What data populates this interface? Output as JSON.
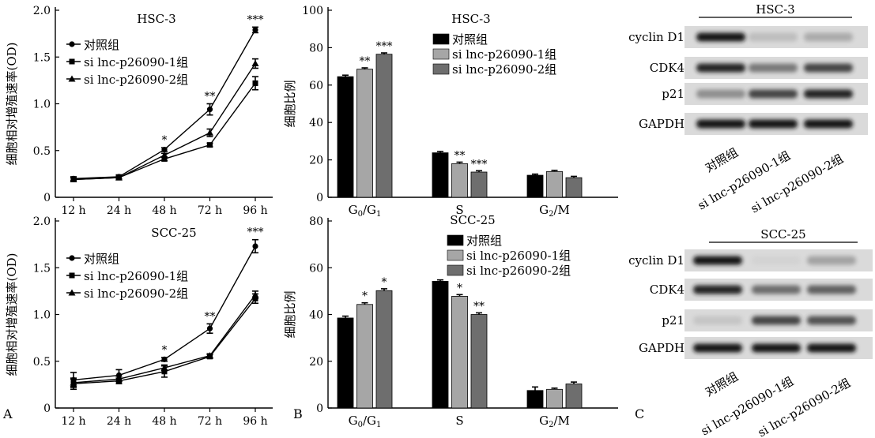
{
  "figure": {
    "panel_labels": [
      "A",
      "B",
      "C"
    ],
    "cell_lines": [
      "HSC-3",
      "SCC-25"
    ]
  },
  "colors": {
    "control": "#000000",
    "si1": "#a6a6a6",
    "si2": "#6e6e6e",
    "line": "#000000"
  },
  "chart_data": [
    {
      "id": "A-HSC3",
      "type": "line",
      "title": "HSC-3",
      "ylabel": "细胞相对增殖速率(OD)",
      "xlabel": "",
      "categories": [
        "12 h",
        "24 h",
        "48 h",
        "72 h",
        "96 h"
      ],
      "ylim": [
        0,
        2.0
      ],
      "yticks": [
        "0",
        "0.5",
        "1.0",
        "1.5",
        "2.0"
      ],
      "legend_position": "top-left",
      "series": [
        {
          "name": "对照组",
          "marker": "circle",
          "values": [
            0.2,
            0.22,
            0.51,
            0.94,
            1.79
          ],
          "errors": [
            0.02,
            0.02,
            0.02,
            0.06,
            0.03
          ]
        },
        {
          "name": "si lnc-p26090-1组",
          "marker": "square",
          "values": [
            0.19,
            0.21,
            0.41,
            0.56,
            1.22
          ],
          "errors": [
            0.02,
            0.02,
            0.02,
            0.02,
            0.07
          ]
        },
        {
          "name": "si lnc-p26090-2组",
          "marker": "triangle",
          "values": [
            0.19,
            0.21,
            0.45,
            0.69,
            1.43
          ],
          "errors": [
            0.02,
            0.02,
            0.02,
            0.04,
            0.05
          ]
        }
      ],
      "annotations": [
        "",
        "",
        "*",
        "**",
        "***"
      ]
    },
    {
      "id": "A-SCC25",
      "type": "line",
      "title": "SCC-25",
      "ylabel": "细胞相对增殖速率(OD)",
      "xlabel": "",
      "categories": [
        "12 h",
        "24 h",
        "48 h",
        "72 h",
        "96 h"
      ],
      "ylim": [
        0,
        2.0
      ],
      "yticks": [
        "0",
        "0.5",
        "1.0",
        "1.5",
        "2.0"
      ],
      "legend_position": "top-left",
      "series": [
        {
          "name": "对照组",
          "marker": "circle",
          "values": [
            0.3,
            0.35,
            0.52,
            0.85,
            1.73
          ],
          "errors": [
            0.08,
            0.06,
            0.02,
            0.05,
            0.07
          ]
        },
        {
          "name": "si lnc-p26090-1组",
          "marker": "square",
          "values": [
            0.26,
            0.29,
            0.39,
            0.55,
            1.17
          ],
          "errors": [
            0.06,
            0.03,
            0.06,
            0.02,
            0.05
          ]
        },
        {
          "name": "si lnc-p26090-2组",
          "marker": "triangle",
          "values": [
            0.27,
            0.31,
            0.43,
            0.56,
            1.21
          ],
          "errors": [
            0.04,
            0.03,
            0.03,
            0.02,
            0.04
          ]
        }
      ],
      "annotations": [
        "",
        "",
        "*",
        "**",
        "***"
      ]
    },
    {
      "id": "B-HSC3",
      "type": "bar",
      "title": "HSC-3",
      "ylabel": "细胞比例",
      "xlabel": "",
      "categories": [
        "G0/G1",
        "S",
        "G2/M"
      ],
      "category_labels": [
        {
          "main": "G",
          "sub1": "0",
          "sep": "/G",
          "sub2": "1"
        },
        {
          "main": "S",
          "sub1": "",
          "sep": "",
          "sub2": ""
        },
        {
          "main": "G",
          "sub1": "2",
          "sep": "/M",
          "sub2": ""
        }
      ],
      "ylim": [
        0,
        100
      ],
      "yticks": [
        "0",
        "20",
        "40",
        "60",
        "80",
        "100"
      ],
      "legend_position": "top-right",
      "series": [
        {
          "name": "对照组",
          "values": [
            64.5,
            23.8,
            11.8
          ],
          "errors": [
            0.8,
            0.7,
            0.6
          ]
        },
        {
          "name": "si lnc-p26090-1组",
          "values": [
            68.5,
            18.0,
            13.8
          ],
          "errors": [
            0.7,
            0.8,
            0.6
          ]
        },
        {
          "name": "si lnc-p26090-2组",
          "values": [
            76.5,
            13.5,
            10.5
          ],
          "errors": [
            0.7,
            0.7,
            0.7
          ]
        }
      ],
      "annotations": [
        [
          "",
          "**",
          "***"
        ],
        [
          "",
          "**",
          "***"
        ],
        [
          "",
          "",
          ""
        ]
      ]
    },
    {
      "id": "B-SCC25",
      "type": "bar",
      "title": "SCC-25",
      "ylabel": "细胞比例",
      "xlabel": "",
      "categories": [
        "G0/G1",
        "S",
        "G2/M"
      ],
      "category_labels": [
        {
          "main": "G",
          "sub1": "0",
          "sep": "/G",
          "sub2": "1"
        },
        {
          "main": "S",
          "sub1": "",
          "sep": "",
          "sub2": ""
        },
        {
          "main": "G",
          "sub1": "2",
          "sep": "/M",
          "sub2": ""
        }
      ],
      "ylim": [
        0,
        80
      ],
      "yticks": [
        "0",
        "20",
        "40",
        "60",
        "80"
      ],
      "legend_position": "top-right",
      "series": [
        {
          "name": "对照组",
          "values": [
            38.5,
            54.2,
            7.5
          ],
          "errors": [
            0.8,
            0.6,
            1.5
          ]
        },
        {
          "name": "si lnc-p26090-1组",
          "values": [
            44.3,
            47.8,
            8.0
          ],
          "errors": [
            0.7,
            0.7,
            0.5
          ]
        },
        {
          "name": "si lnc-p26090-2组",
          "values": [
            50.2,
            40.0,
            10.3
          ],
          "errors": [
            0.8,
            0.7,
            0.8
          ]
        }
      ],
      "annotations": [
        [
          "",
          "*",
          "*"
        ],
        [
          "",
          "*",
          "**"
        ],
        [
          "",
          "",
          ""
        ]
      ]
    }
  ],
  "western_blots": [
    {
      "id": "C-HSC3",
      "title": "HSC-3",
      "proteins": [
        "cyclin D1",
        "CDK4",
        "p21",
        "GAPDH"
      ],
      "lanes": [
        "对照组",
        "si lnc-p26090-1组",
        "si lnc-p26090-2组"
      ],
      "band_intensity": [
        [
          1.0,
          0.28,
          0.4
        ],
        [
          0.95,
          0.65,
          0.85
        ],
        [
          0.55,
          0.85,
          0.95
        ],
        [
          1.0,
          1.0,
          1.0
        ]
      ]
    },
    {
      "id": "C-SCC25",
      "title": "SCC-25",
      "proteins": [
        "cyclin D1",
        "CDK4",
        "p21",
        "GAPDH"
      ],
      "lanes": [
        "对照组",
        "si lnc-p26090-1组",
        "si lnc-p26090-2组"
      ],
      "band_intensity": [
        [
          1.0,
          0.08,
          0.45
        ],
        [
          0.95,
          0.7,
          0.75
        ],
        [
          0.22,
          0.85,
          0.8
        ],
        [
          1.0,
          1.0,
          1.0
        ]
      ]
    }
  ]
}
